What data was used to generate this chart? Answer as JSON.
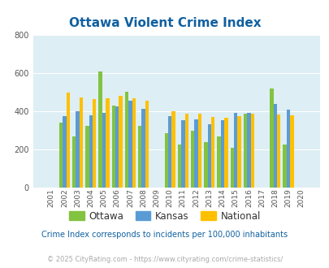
{
  "title": "Ottawa Violent Crime Index",
  "title_color": "#1060a0",
  "years": [
    2001,
    2002,
    2003,
    2004,
    2005,
    2006,
    2007,
    2008,
    2009,
    2010,
    2011,
    2012,
    2013,
    2014,
    2015,
    2016,
    2017,
    2018,
    2019,
    2020
  ],
  "ottawa": [
    0,
    340,
    270,
    325,
    610,
    430,
    500,
    325,
    0,
    285,
    225,
    298,
    238,
    270,
    210,
    385,
    0,
    520,
    225,
    0
  ],
  "kansas": [
    0,
    375,
    398,
    378,
    393,
    425,
    455,
    413,
    0,
    375,
    355,
    358,
    330,
    352,
    393,
    390,
    0,
    437,
    410,
    0
  ],
  "national": [
    0,
    497,
    472,
    463,
    469,
    479,
    469,
    453,
    0,
    401,
    388,
    387,
    368,
    365,
    373,
    387,
    0,
    381,
    379,
    0
  ],
  "ottawa_color": "#82c341",
  "kansas_color": "#5b9bd5",
  "national_color": "#ffc000",
  "bg_color": "#ddeef4",
  "ylim": [
    0,
    800
  ],
  "yticks": [
    0,
    200,
    400,
    600,
    800
  ],
  "subtitle": "Crime Index corresponds to incidents per 100,000 inhabitants",
  "subtitle_color": "#1060a0",
  "footer": "© 2025 CityRating.com - https://www.cityrating.com/crime-statistics/",
  "footer_color": "#aaaaaa",
  "legend_labels": [
    "Ottawa",
    "Kansas",
    "National"
  ],
  "bar_width": 0.27
}
